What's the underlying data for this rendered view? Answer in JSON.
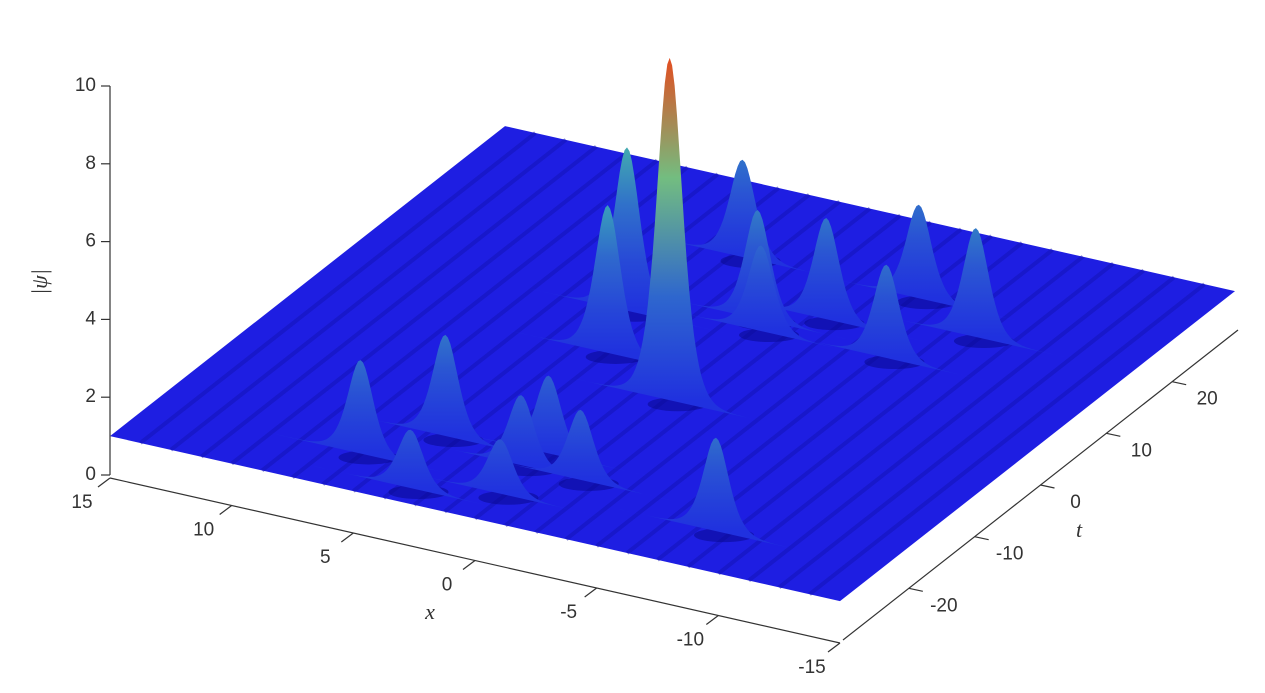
{
  "chart_data": {
    "type": "surface",
    "xlabel": "x",
    "ylabel": "t",
    "zlabel": "|ψ|",
    "xlim": [
      -15,
      15
    ],
    "ylim": [
      -30,
      30
    ],
    "zlim": [
      0,
      10
    ],
    "xticks": [
      15,
      10,
      5,
      0,
      -5,
      -10,
      -15
    ],
    "yticks": [
      -20,
      -10,
      0,
      10,
      20
    ],
    "zticks": [
      0,
      2,
      4,
      6,
      8,
      10
    ],
    "background": 1,
    "x": [
      3.6,
      2.5,
      2.1,
      -0.9,
      -3.1,
      -5.2,
      -8.6,
      -6.6,
      -1.5,
      6.3,
      4.3,
      0.3,
      0.7,
      -1.8,
      -8.2,
      3.3,
      0.2,
      -1.4
    ],
    "y": [
      6.4,
      -0.6,
      18.4,
      9.6,
      11.9,
      18.2,
      14.3,
      8.1,
      7.9,
      -24.1,
      -18.6,
      -17.7,
      -20.4,
      -20.6,
      -23.7,
      -27.6,
      -25.4,
      -5.6
    ],
    "values": [
      5.2,
      4.8,
      3.5,
      3.8,
      3.6,
      3.4,
      3.8,
      3.4,
      3.2,
      3.4,
      3.6,
      3.0,
      2.8,
      2.8,
      3.4,
      2.5,
      2.4,
      9.8
    ]
  }
}
